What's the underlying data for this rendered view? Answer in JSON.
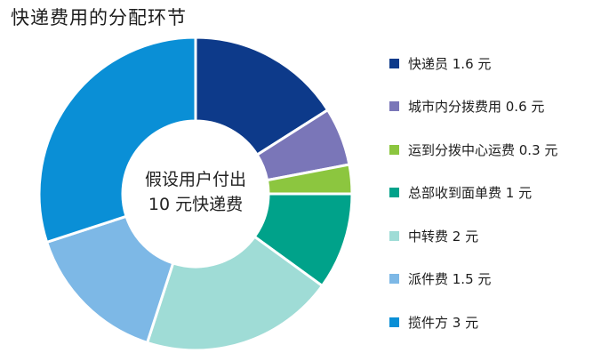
{
  "title": "快递费用的分配环节",
  "center_label": {
    "line1": "假设用户付出",
    "line2": "10 元快递费"
  },
  "legend": [
    {
      "label": "快递员 1.6 元",
      "color": "#0d3a8a"
    },
    {
      "label": "城市内分拨费用 0.6 元",
      "color": "#7a76b8"
    },
    {
      "label": "运到分拨中心运费 0.3 元",
      "color": "#8cc63f"
    },
    {
      "label": "总部收到面单费 1 元",
      "color": "#00a28a"
    },
    {
      "label": "中转费 2 元",
      "color": "#9fdcd6"
    },
    {
      "label": "派件费 1.5 元",
      "color": "#7db8e6"
    },
    {
      "label": "揽件方 3 元",
      "color": "#0a8fd6"
    }
  ],
  "chart_data": {
    "type": "pie",
    "variant": "donut",
    "title": "快递费用的分配环节",
    "total": 10,
    "unit": "元",
    "categories": [
      "快递员",
      "城市内分拨费用",
      "运到分拨中心运费",
      "总部收到面单费",
      "中转费",
      "派件费",
      "揽件方"
    ],
    "values": [
      1.6,
      0.6,
      0.3,
      1,
      2,
      1.5,
      3
    ],
    "displayed_values": [
      1.6,
      0.6,
      0.3,
      1,
      2,
      1.5,
      3
    ],
    "colors": [
      "#0d3a8a",
      "#7a76b8",
      "#8cc63f",
      "#00a28a",
      "#9fdcd6",
      "#7db8e6",
      "#0a8fd6"
    ],
    "start_angle": "12 o'clock",
    "direction": "clockwise",
    "legend_position": "right"
  }
}
